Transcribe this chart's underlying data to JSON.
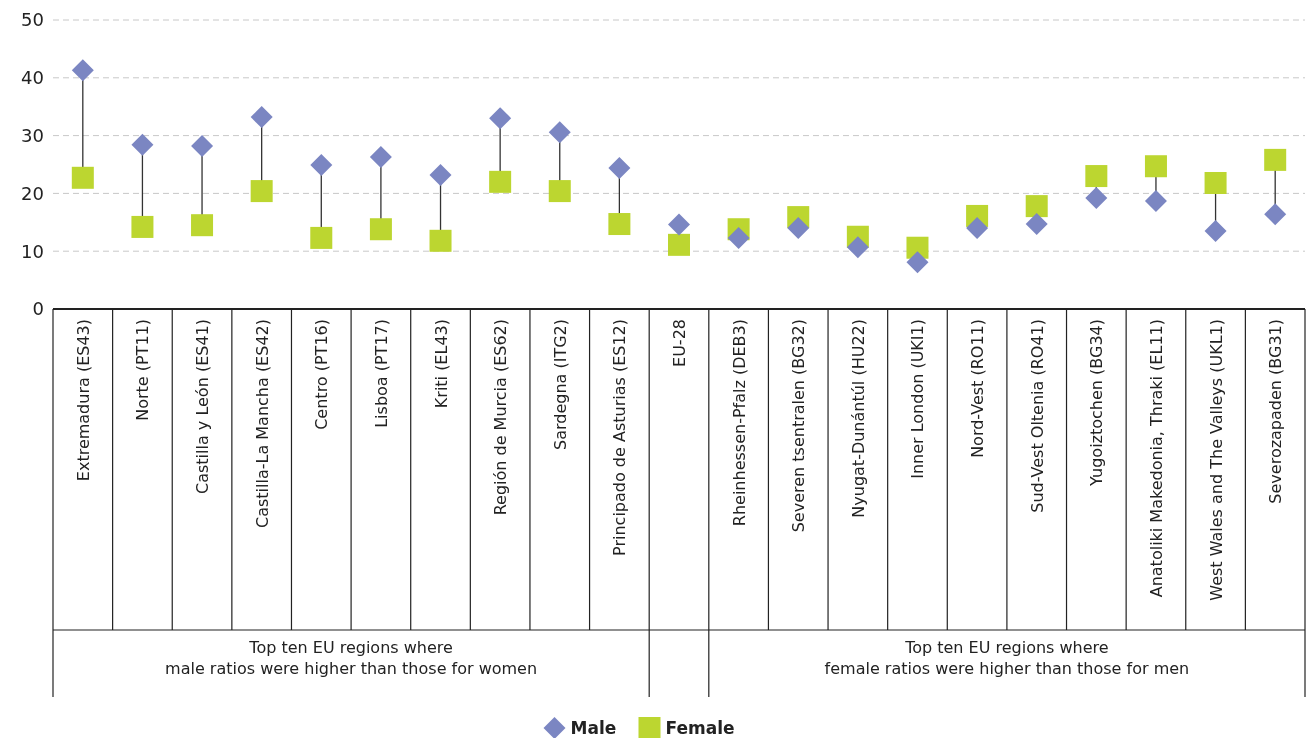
{
  "chart_data": {
    "type": "scatter",
    "categories": [
      "Extremadura (ES43)",
      "Norte (PT11)",
      "Castilla y León (ES41)",
      "Castilla-La Mancha (ES42)",
      "Centro (PT16)",
      "Lisboa (PT17)",
      "Kriti (EL43)",
      "Región de Murcia (ES62)",
      "Sardegna (ITG2)",
      "Principado de Asturias (ES12)",
      "EU-28",
      "Rheinhessen-Pfalz (DEB3)",
      "Severen tsentralen (BG32)",
      "Nyugat-Dunántúl (HU22)",
      "Inner London (UKI1)",
      "Nord-Vest (RO11)",
      "Sud-Vest Oltenia (RO41)",
      "Yugoiztochen (BG34)",
      "Anatoliki Makedonia, Thraki (EL11)",
      "West Wales and The Valleys (UKL1)",
      "Severozapaden (BG31)"
    ],
    "series": [
      {
        "name": "Male",
        "color": "#7b86c2",
        "marker": "diamond",
        "values": [
          41.3,
          28.4,
          28.2,
          33.2,
          24.9,
          26.3,
          23.2,
          33.0,
          30.6,
          24.4,
          14.6,
          12.3,
          14.0,
          10.7,
          8.1,
          14.0,
          14.7,
          19.2,
          18.7,
          13.5,
          16.4
        ]
      },
      {
        "name": "Female",
        "color": "#bcd630",
        "marker": "square",
        "values": [
          22.7,
          14.2,
          14.5,
          20.4,
          12.3,
          13.8,
          11.8,
          22.0,
          20.4,
          14.7,
          11.1,
          13.8,
          15.9,
          12.5,
          10.6,
          16.1,
          17.8,
          23.0,
          24.7,
          21.8,
          25.8
        ]
      }
    ],
    "ylim": [
      0,
      50
    ],
    "yticks": [
      0,
      10,
      20,
      30,
      40,
      50
    ],
    "grid": "y",
    "legend": "bottom",
    "annotations": [
      "Top ten EU regions where\nmale ratios were higher than those for women",
      "Top ten EU regions where\nfemale ratios were higher than those for men"
    ]
  }
}
